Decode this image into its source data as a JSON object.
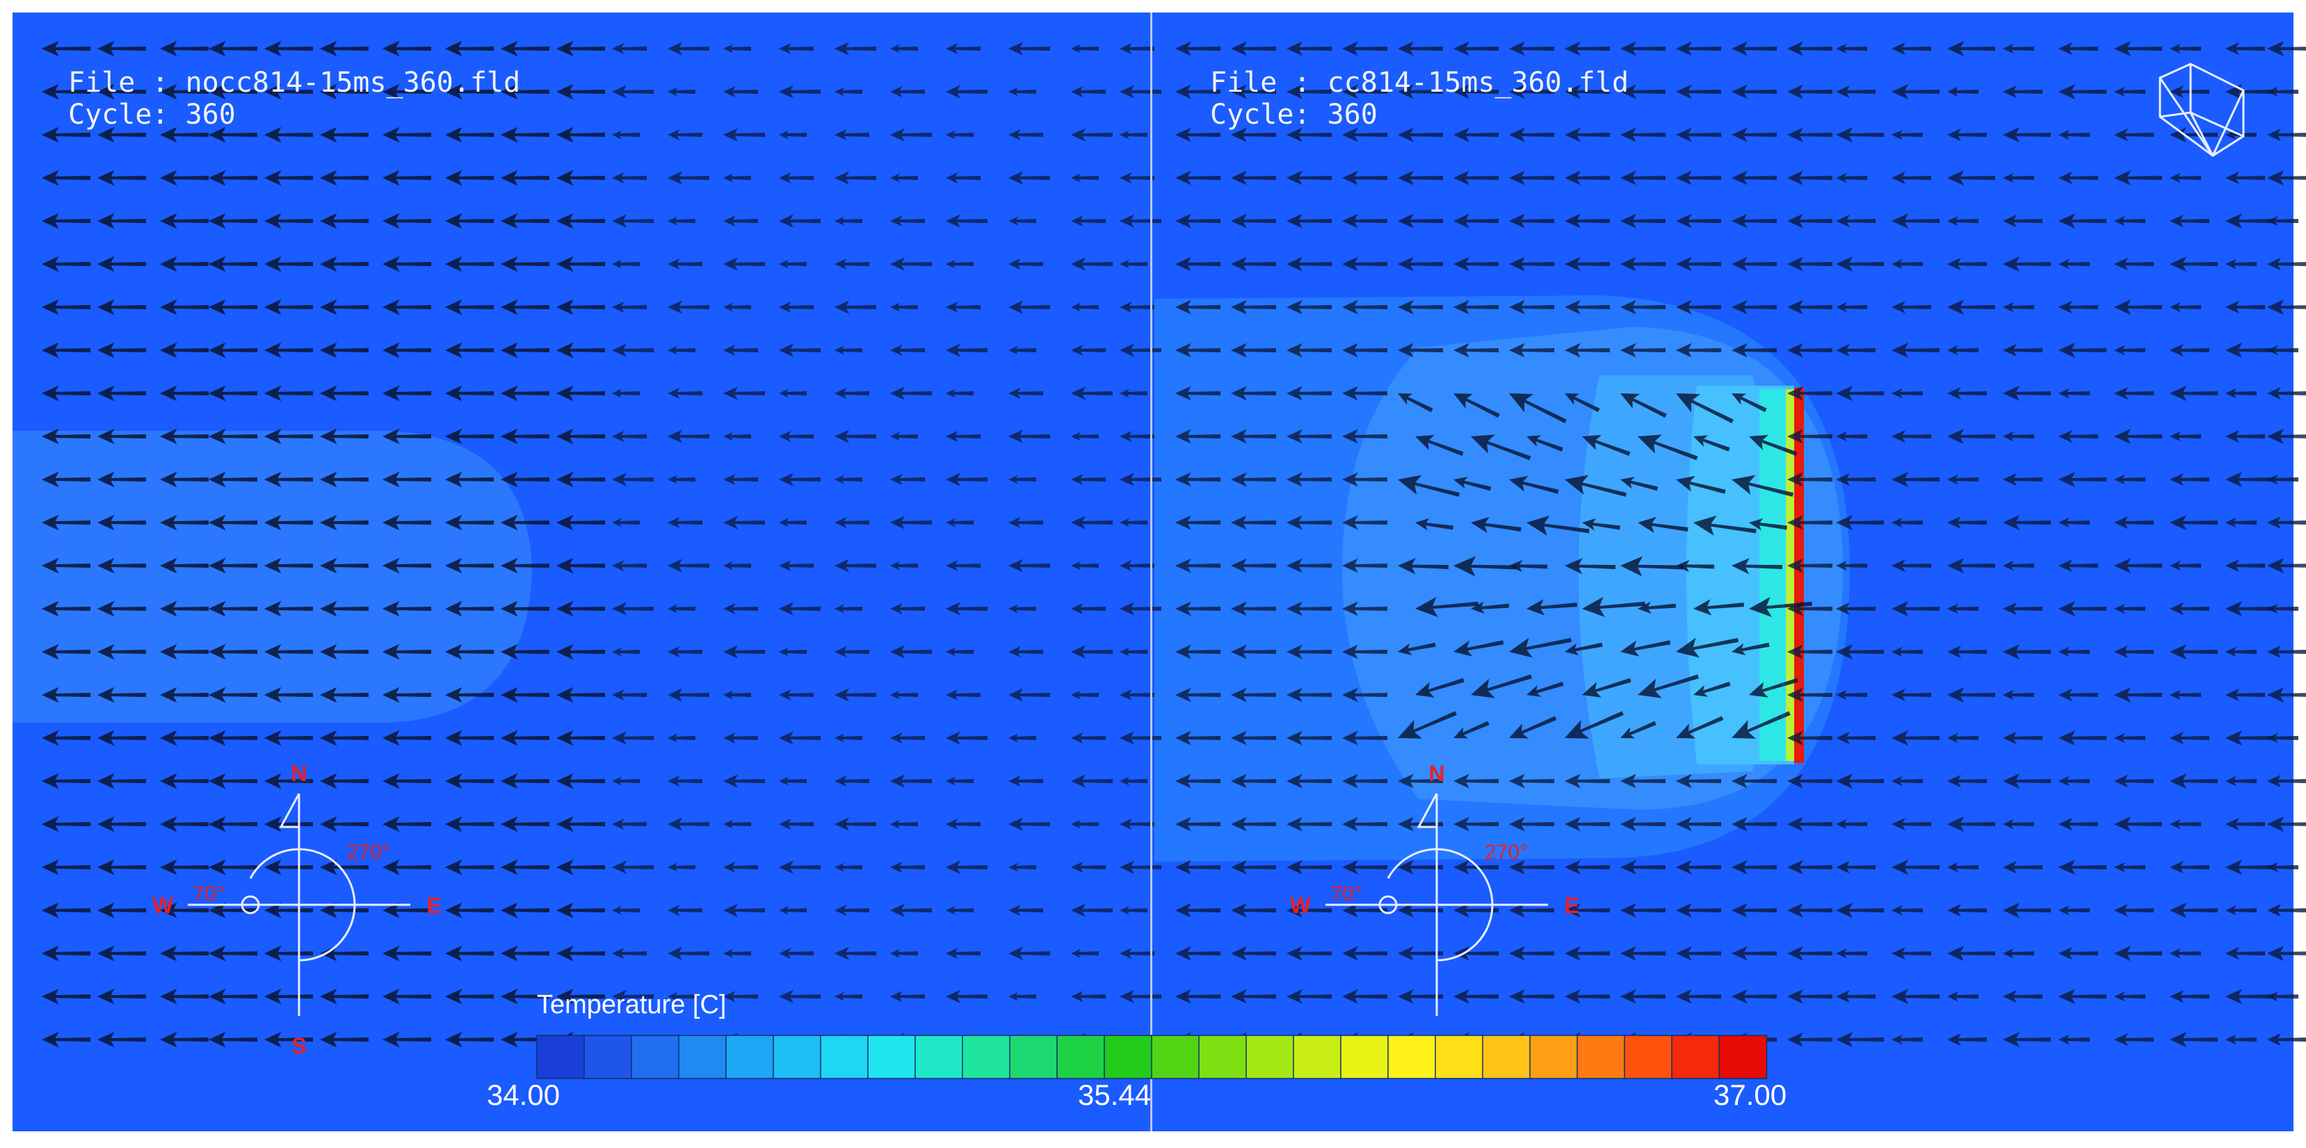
{
  "left_panel": {
    "file_line": "File : nocc814-15ms_360.fld",
    "cycle_line": "Cycle: 360"
  },
  "right_panel": {
    "file_line": "File : cc814-15ms_360.fld",
    "cycle_line": "Cycle: 360"
  },
  "compass": {
    "north": "N",
    "south": "S",
    "east": "E",
    "west": "W",
    "wind_angle": "270°",
    "sun_angle": "70°"
  },
  "legend": {
    "title": "Temperature [C]",
    "min_label": "34.00",
    "mid_label": "35.44",
    "max_label": "37.00",
    "colors": [
      "#1a3fd6",
      "#1f55e8",
      "#1f6ff0",
      "#1f8af3",
      "#1fa6f5",
      "#1fbef5",
      "#1fd6f5",
      "#1fe6ee",
      "#1fe8c8",
      "#1fe69c",
      "#1ed872",
      "#1ed246",
      "#22cc18",
      "#52d414",
      "#7ee012",
      "#a4e814",
      "#c8ee14",
      "#e8f214",
      "#fff218",
      "#ffe016",
      "#ffc416",
      "#ffa014",
      "#ff7a10",
      "#ff520c",
      "#f42a08",
      "#e80a06"
    ]
  },
  "field": {
    "background": "#1a5cff",
    "plume_outer": "#2b78ff",
    "plume_mid": "#3c98ff",
    "plume_inner": "#4cc4ff",
    "arrow_color": "#0b1a3c"
  }
}
